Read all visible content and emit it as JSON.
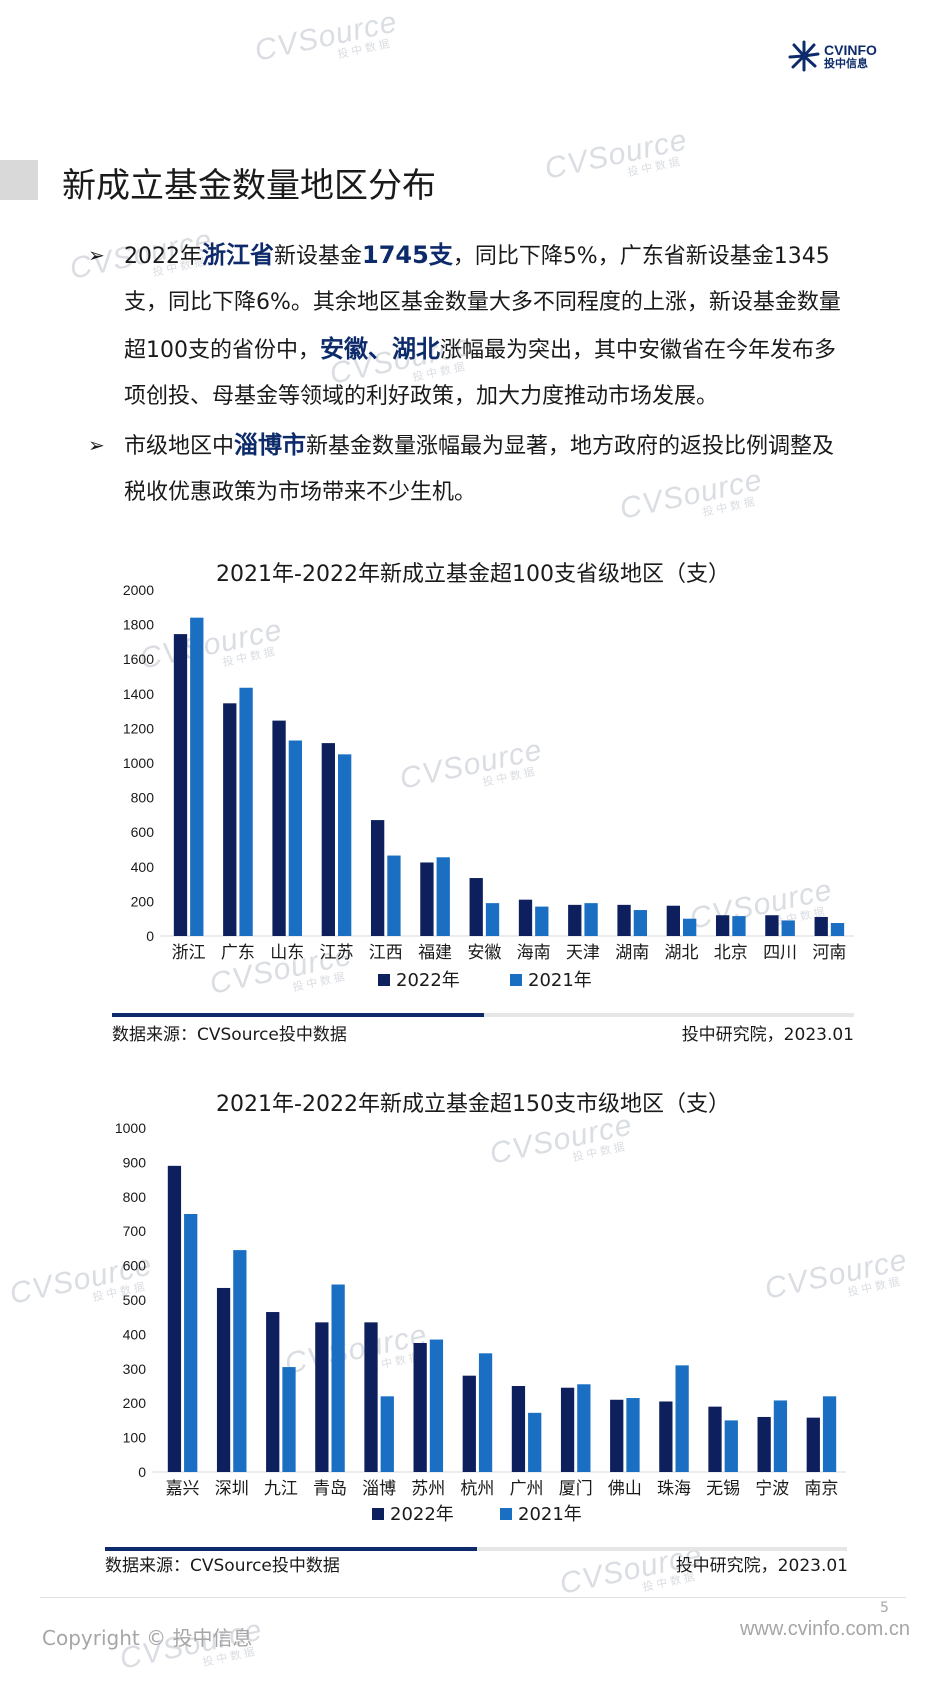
{
  "watermark": {
    "main": "CVSource",
    "sub": "投中数据"
  },
  "logo": {
    "line1": "CVINFO",
    "line2": "投中信息",
    "color": "#0d2b6b"
  },
  "page_title": "新成立基金数量地区分布",
  "bullets": [
    {
      "parts": [
        {
          "t": "2022年",
          "hl": false
        },
        {
          "t": "浙江省",
          "hl": true
        },
        {
          "t": "新设基金",
          "hl": false
        },
        {
          "t": "1745支",
          "hl": true
        },
        {
          "t": "，同比下降5%，广东省新设基金1345支，同比下降6%。其余地区基金数量大多不同程度的上涨，新设基金数量超100支的省份中，",
          "hl": false
        },
        {
          "t": "安徽、湖北",
          "hl": true
        },
        {
          "t": "涨幅最为突出，其中安徽省在今年发布多项创投、母基金等领域的利好政策，加大力度推动市场发展。",
          "hl": false
        }
      ]
    },
    {
      "parts": [
        {
          "t": "市级地区中",
          "hl": false
        },
        {
          "t": "淄博市",
          "hl": true
        },
        {
          "t": "新基金数量涨幅最为显著，地方政府的返投比例调整及税收优惠政策为市场带来不少生机。",
          "hl": false
        }
      ]
    }
  ],
  "colors": {
    "series_2022": "#0d1f5c",
    "series_2021": "#1a6fc2",
    "highlight": "#0d2b6b"
  },
  "chart_data": [
    {
      "type": "bar",
      "title": "2021年-2022年新成立基金超100支省级地区（支）",
      "categories": [
        "浙江",
        "广东",
        "山东",
        "江苏",
        "江西",
        "福建",
        "安徽",
        "海南",
        "天津",
        "湖南",
        "湖北",
        "北京",
        "四川",
        "河南"
      ],
      "series": [
        {
          "name": "2022年",
          "values": [
            1745,
            1345,
            1245,
            1115,
            670,
            425,
            335,
            210,
            180,
            180,
            175,
            120,
            120,
            110
          ]
        },
        {
          "name": "2021年",
          "values": [
            1840,
            1435,
            1130,
            1050,
            465,
            455,
            190,
            170,
            190,
            150,
            100,
            115,
            90,
            75
          ]
        }
      ],
      "ylim": [
        0,
        2000
      ],
      "yticks": [
        0,
        200,
        400,
        600,
        800,
        1000,
        1200,
        1400,
        1600,
        1800,
        2000
      ],
      "grid": false,
      "legend": "bottom",
      "source": "数据来源：CVSource投中数据",
      "credit": "投中研究院，2023.01"
    },
    {
      "type": "bar",
      "title": "2021年-2022年新成立基金超150支市级地区（支）",
      "categories": [
        "嘉兴",
        "深圳",
        "九江",
        "青岛",
        "淄博",
        "苏州",
        "杭州",
        "广州",
        "厦门",
        "佛山",
        "珠海",
        "无锡",
        "宁波",
        "南京"
      ],
      "series": [
        {
          "name": "2022年",
          "values": [
            890,
            535,
            465,
            435,
            435,
            375,
            280,
            250,
            245,
            210,
            205,
            190,
            160,
            158
          ]
        },
        {
          "name": "2021年",
          "values": [
            750,
            645,
            305,
            545,
            220,
            385,
            345,
            172,
            255,
            215,
            310,
            150,
            208,
            220
          ]
        }
      ],
      "ylim": [
        0,
        1000
      ],
      "yticks": [
        0,
        100,
        200,
        300,
        400,
        500,
        600,
        700,
        800,
        900,
        1000
      ],
      "grid": false,
      "legend": "bottom",
      "source": "数据来源：CVSource投中数据",
      "credit": "投中研究院，2023.01"
    }
  ],
  "footer": {
    "copyright": "Copyright © 投中信息",
    "website": "www.cvinfo.com.cn",
    "page_number": "5"
  }
}
